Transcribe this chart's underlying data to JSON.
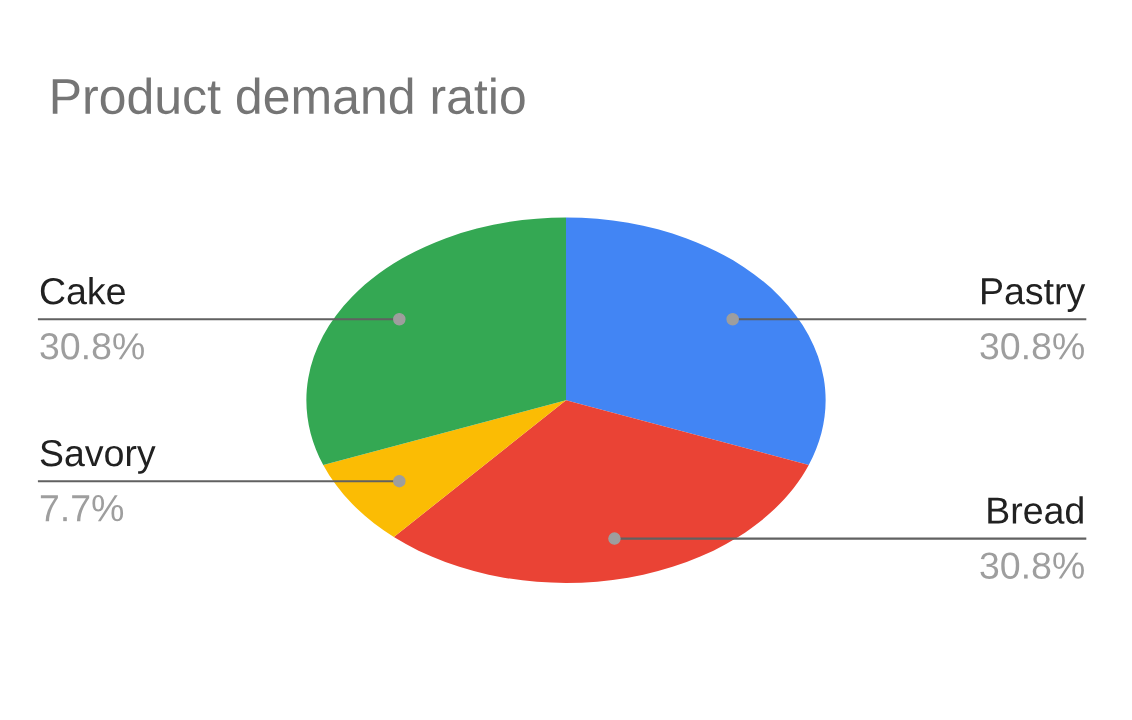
{
  "chart_data": {
    "type": "pie",
    "title": "Product demand ratio",
    "categories": [
      "Pastry",
      "Bread",
      "Savory",
      "Cake"
    ],
    "values": [
      30.8,
      30.8,
      7.7,
      30.8
    ],
    "colors": [
      "#4285f4",
      "#ea4335",
      "#fbbc04",
      "#34a853"
    ],
    "value_labels": [
      "30.8%",
      "30.8%",
      "7.7%",
      "30.8%"
    ]
  }
}
